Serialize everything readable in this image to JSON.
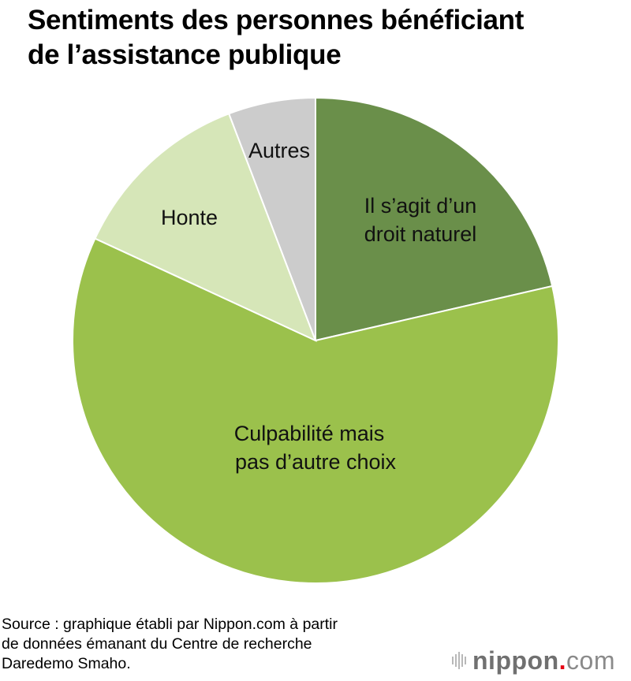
{
  "title": {
    "line1": "Sentiments des personnes bénéficiant",
    "line2": "de l’assistance publique"
  },
  "chart_data": {
    "type": "pie",
    "title": "Sentiments des personnes bénéficiant de l’assistance publique",
    "start_angle": "12 o'clock, clockwise",
    "slices": [
      {
        "label": "Il s’agit d’un droit naturel",
        "value": 21.4,
        "color": "#6a8f4a"
      },
      {
        "label": "Culpabilité mais pas d’autre choix",
        "value": 60.5,
        "color": "#9bc14c"
      },
      {
        "label": "Honte",
        "value": 12.3,
        "color": "#d6e6b8"
      },
      {
        "label": "Autres",
        "value": 5.8,
        "color": "#cccccc"
      }
    ],
    "units": "% (estimated from slice angles, no data labels shown)",
    "legend": "none (labels placed inside slices)"
  },
  "labels": {
    "droit_l1": "Il s’agit d’un",
    "droit_l2": "droit naturel",
    "culpa_l1": "Culpabilité mais",
    "culpa_l2": "pas d’autre choix",
    "honte": "Honte",
    "autres": "Autres"
  },
  "source": {
    "line1": "Source : graphique établi par Nippon.com à partir",
    "line2": "de données émanant du Centre de recherche",
    "line3": "Daredemo Smaho."
  },
  "logo": {
    "name": "nippon",
    "dot": ".",
    "tld": "com",
    "accent": "#e60012"
  }
}
